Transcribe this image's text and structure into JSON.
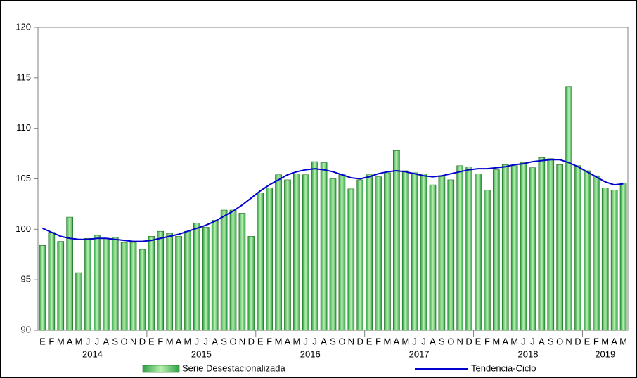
{
  "chart_data": {
    "type": "bar_line",
    "categories": [
      "E",
      "F",
      "M",
      "A",
      "M",
      "J",
      "J",
      "A",
      "S",
      "O",
      "N",
      "D",
      "E",
      "F",
      "M",
      "A",
      "M",
      "J",
      "J",
      "A",
      "S",
      "O",
      "N",
      "D",
      "E",
      "F",
      "M",
      "A",
      "M",
      "J",
      "J",
      "A",
      "S",
      "O",
      "N",
      "D",
      "E",
      "F",
      "M",
      "A",
      "M",
      "J",
      "J",
      "A",
      "S",
      "O",
      "N",
      "D",
      "E",
      "F",
      "M",
      "A",
      "M",
      "J",
      "J",
      "A",
      "S",
      "O",
      "N",
      "D",
      "E",
      "F",
      "M",
      "A",
      "M"
    ],
    "years": [
      "2014",
      "2015",
      "2016",
      "2017",
      "2018",
      "2019"
    ],
    "ylim": [
      90,
      120
    ],
    "yticks": [
      90,
      95,
      100,
      105,
      110,
      115,
      120
    ],
    "series": [
      {
        "name": "Serie Desestacionalizada",
        "kind": "bar",
        "color": "#2ea043",
        "values": [
          98.4,
          99.7,
          98.8,
          101.2,
          95.7,
          99.1,
          99.4,
          99.1,
          99.2,
          98.7,
          98.7,
          98.0,
          99.3,
          99.8,
          99.6,
          99.3,
          99.8,
          100.6,
          100.2,
          100.9,
          101.9,
          101.9,
          101.6,
          99.3,
          103.6,
          104.1,
          105.4,
          104.9,
          105.5,
          105.4,
          106.7,
          106.6,
          105.0,
          105.5,
          104.0,
          104.9,
          105.4,
          105.2,
          105.6,
          107.8,
          105.8,
          105.6,
          105.5,
          104.4,
          105.2,
          104.9,
          106.3,
          106.2,
          105.5,
          103.9,
          105.9,
          106.4,
          106.3,
          106.6,
          106.1,
          107.1,
          107.0,
          106.4,
          114.1,
          106.3,
          105.8,
          105.3,
          104.1,
          103.9,
          104.6
        ]
      },
      {
        "name": "Tendencia-Ciclo",
        "kind": "line",
        "color": "#0000cc",
        "values": [
          100.1,
          99.7,
          99.3,
          99.1,
          99.0,
          99.0,
          99.1,
          99.1,
          99.0,
          98.9,
          98.8,
          98.8,
          98.9,
          99.1,
          99.3,
          99.5,
          99.8,
          100.1,
          100.4,
          100.8,
          101.3,
          101.8,
          102.4,
          103.1,
          103.8,
          104.4,
          104.9,
          105.4,
          105.7,
          105.9,
          106.0,
          105.9,
          105.7,
          105.4,
          105.1,
          105.0,
          105.2,
          105.5,
          105.7,
          105.8,
          105.7,
          105.5,
          105.3,
          105.2,
          105.3,
          105.5,
          105.7,
          105.9,
          106.0,
          106.0,
          106.1,
          106.2,
          106.4,
          106.5,
          106.7,
          106.8,
          106.9,
          106.9,
          106.6,
          106.2,
          105.7,
          105.2,
          104.7,
          104.4,
          104.5
        ]
      }
    ]
  }
}
